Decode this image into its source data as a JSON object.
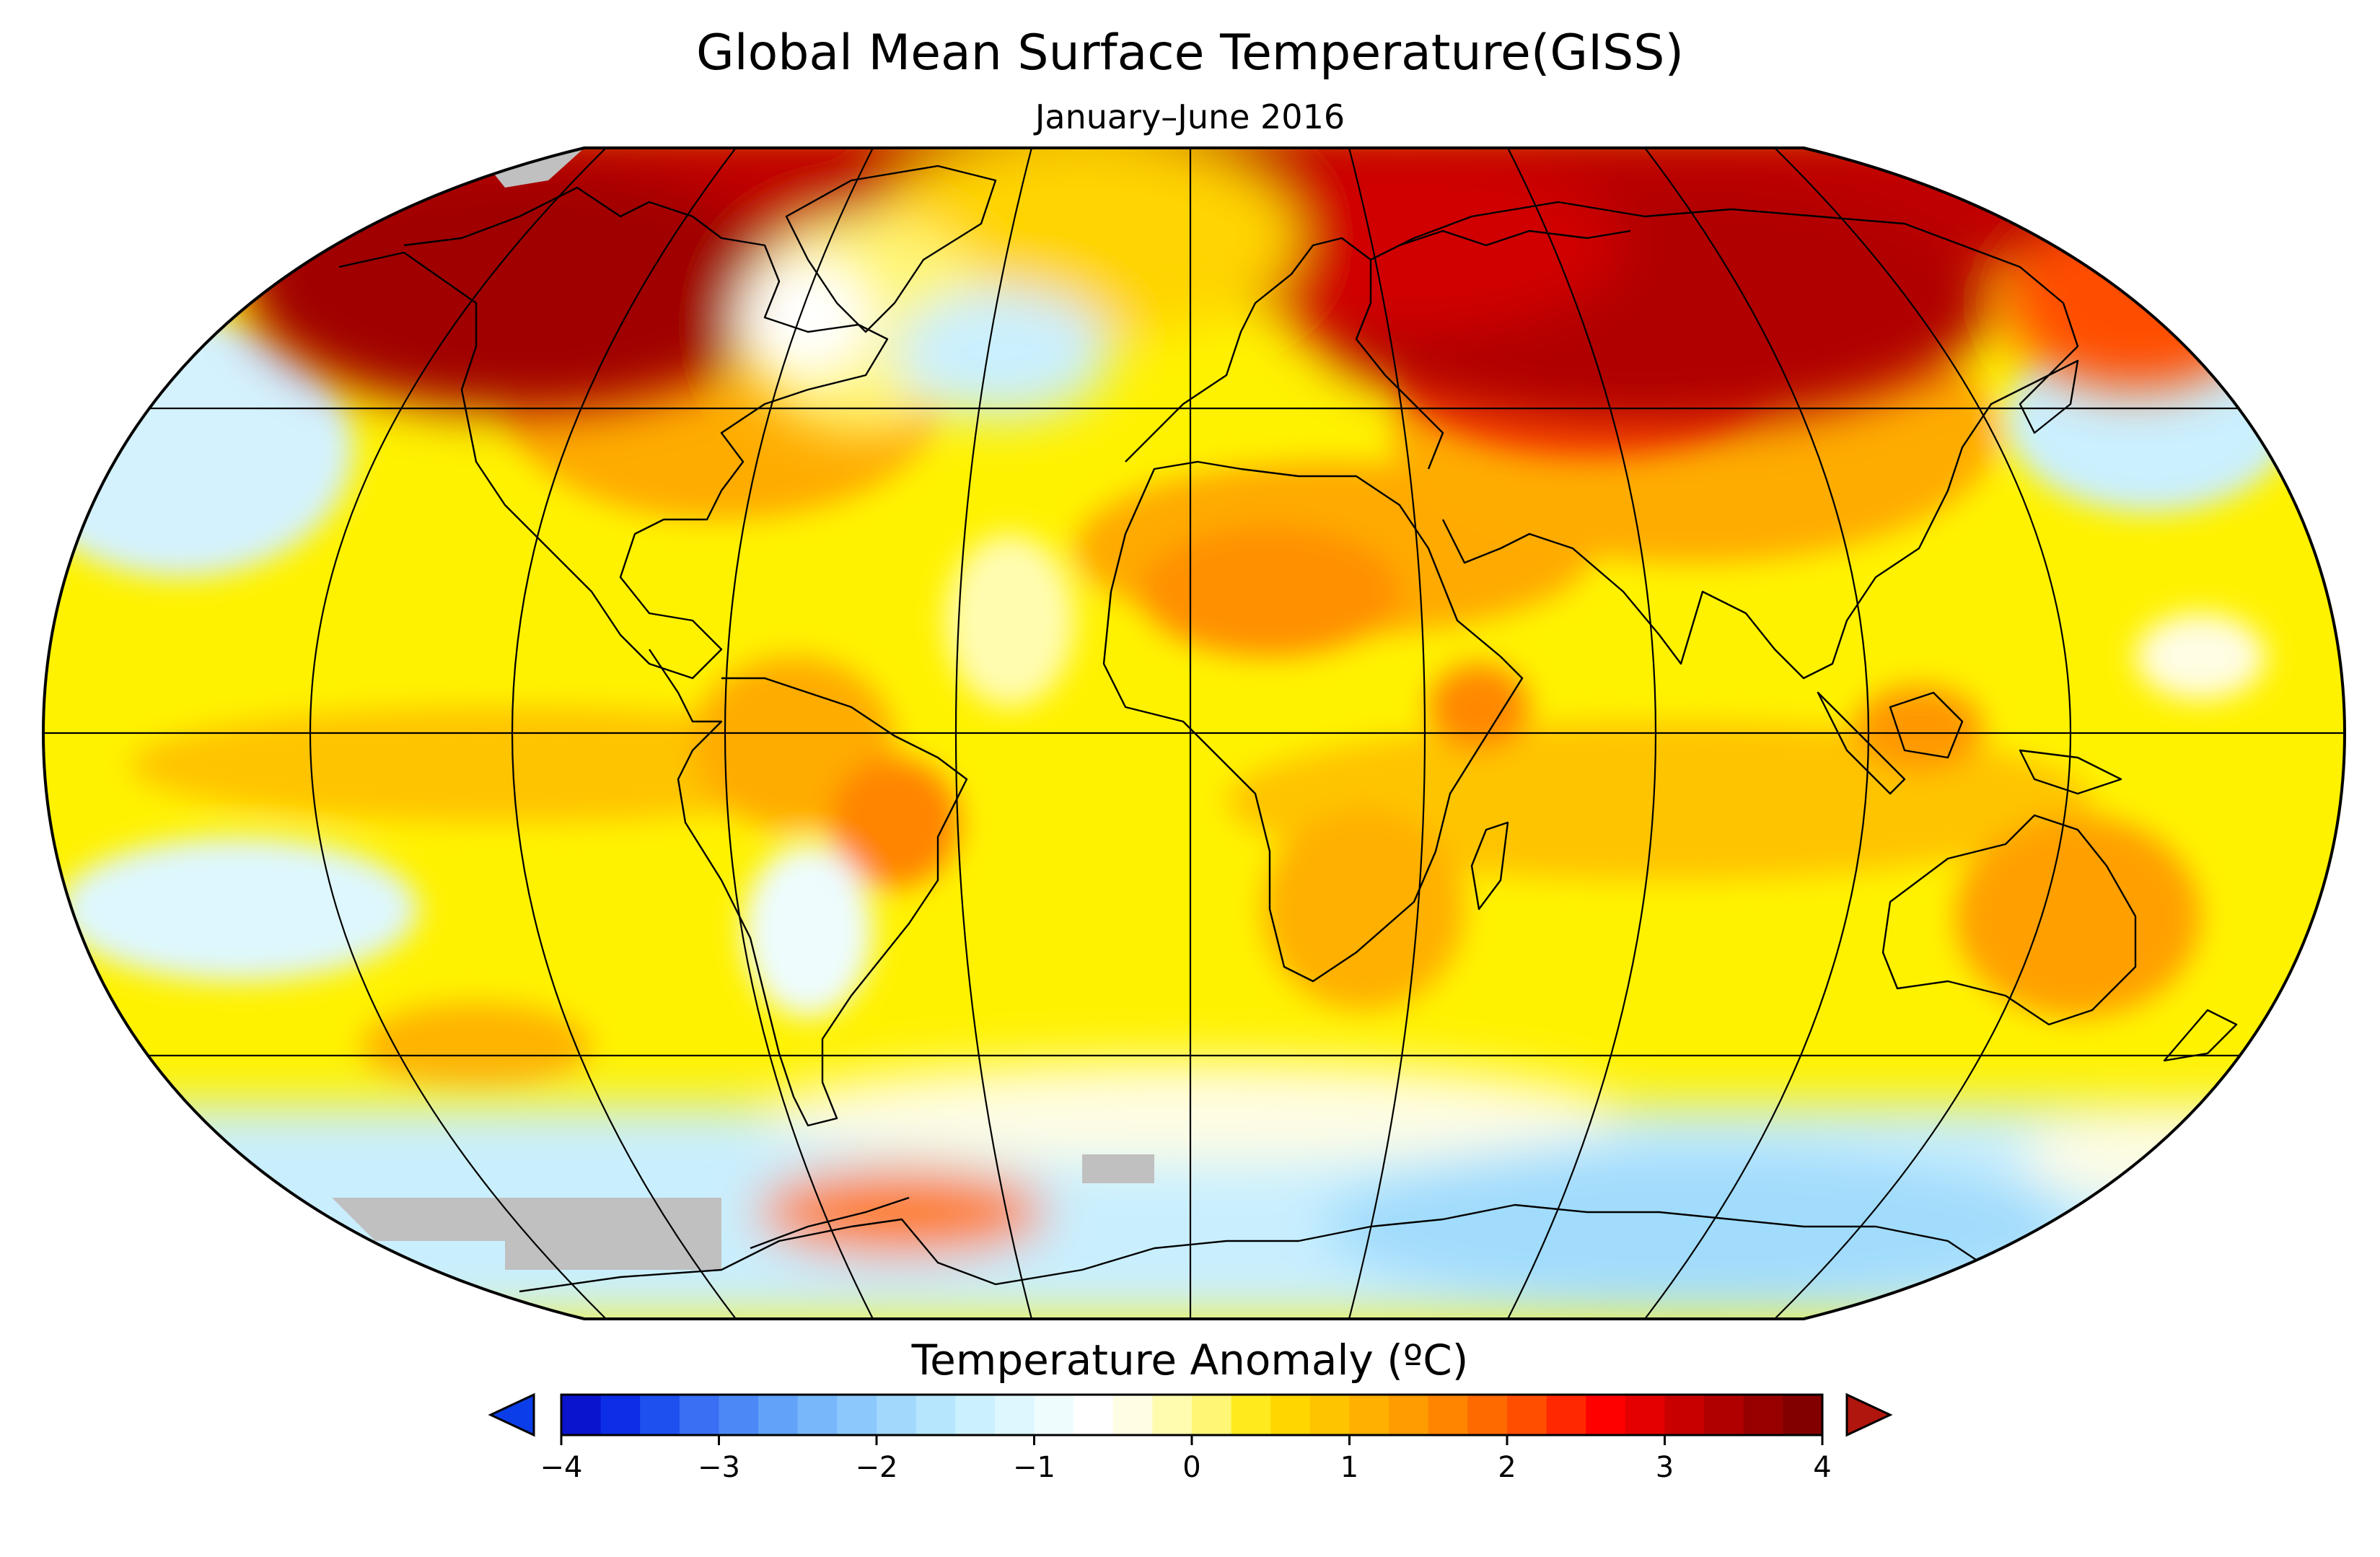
{
  "title": "Global Mean Surface Temperature(GISS)",
  "subtitle": "January–June 2016",
  "colorbar": {
    "title": "Temperature Anomaly (ºC)",
    "ticks": [
      "−4",
      "−3",
      "−2",
      "−1",
      "0",
      "1",
      "2",
      "3",
      "4"
    ],
    "range": [
      -4,
      4
    ],
    "extend": "both",
    "under_color": "#0b3ee8",
    "over_color": "#b0150e",
    "colors": [
      "#0a14cc",
      "#0c2ee6",
      "#1e50f0",
      "#3a6ff4",
      "#4d89f6",
      "#62a2f8",
      "#78b7fa",
      "#8cc8fb",
      "#a1d8fc",
      "#b6e6fd",
      "#cbf0fe",
      "#def7fe",
      "#eefcfe",
      "#ffffff",
      "#fffde3",
      "#fffcb0",
      "#fff676",
      "#ffea1e",
      "#ffd600",
      "#ffc400",
      "#ffb000",
      "#ff9c00",
      "#ff8400",
      "#ff6a00",
      "#ff4e00",
      "#ff2800",
      "#ff0000",
      "#e40000",
      "#c80000",
      "#b00000",
      "#980000",
      "#820000"
    ],
    "no_data_color": "#c0c0c0"
  },
  "map": {
    "projection": "Robinson",
    "gridlines": true,
    "coastlines": true
  }
}
